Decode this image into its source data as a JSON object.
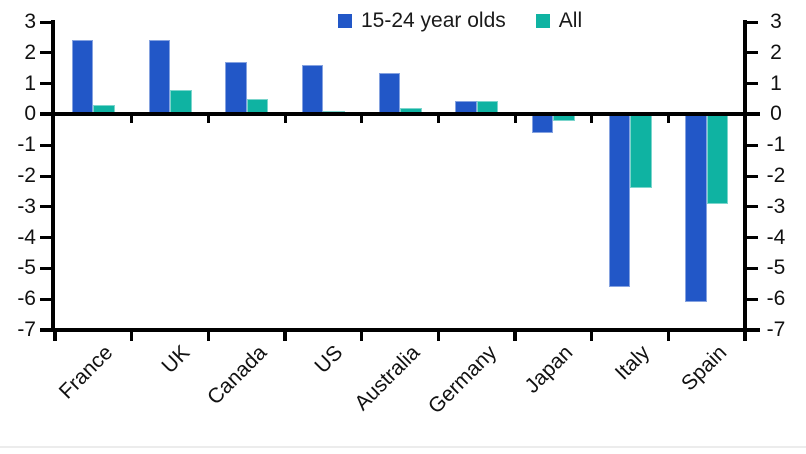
{
  "chart_data": {
    "type": "bar",
    "title": "",
    "xlabel": "",
    "ylabel": "",
    "categories": [
      "France",
      "UK",
      "Canada",
      "US",
      "Australia",
      "Germany",
      "Japan",
      "Italy",
      "Spain"
    ],
    "series": [
      {
        "name": "15-24 year olds",
        "color": "#2257C7",
        "values": [
          2.4,
          2.4,
          1.7,
          1.6,
          1.35,
          0.45,
          -0.6,
          -5.6,
          -6.1
        ]
      },
      {
        "name": "All",
        "color": "#0FB3A2",
        "values": [
          0.3,
          0.8,
          0.5,
          0.1,
          0.2,
          0.45,
          -0.2,
          -2.4,
          -2.9
        ]
      }
    ],
    "ylim": [
      -7,
      3
    ],
    "yticks": [
      3,
      2,
      1,
      0,
      -1,
      -2,
      -3,
      -4,
      -5,
      -6,
      -7
    ],
    "axis_labels_sides": "both",
    "grid": false,
    "legend_position": "top-center",
    "axis_color": "#000000",
    "zero_line": true
  }
}
